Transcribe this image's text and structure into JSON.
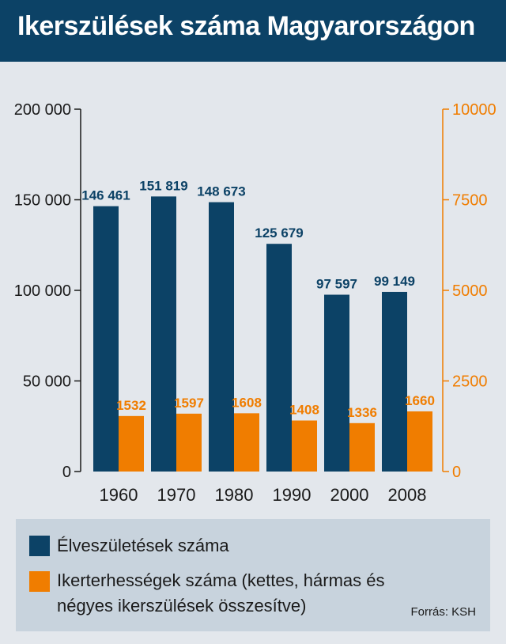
{
  "title": "Ikerszülések száma Magyarországon",
  "chart_data": {
    "type": "bar",
    "categories": [
      "1960",
      "1970",
      "1980",
      "1990",
      "2000",
      "2008"
    ],
    "series": [
      {
        "name": "Élveszületések száma",
        "axis": "left",
        "color": "#0c4266",
        "values": [
          146461,
          151819,
          148673,
          125679,
          97597,
          99149
        ],
        "labels": [
          "146 461",
          "151 819",
          "148 673",
          "125 679",
          "97 597",
          "99 149"
        ]
      },
      {
        "name": "Ikerterhességek száma (kettes, hármas és négyes ikerszülések összesítve)",
        "axis": "right",
        "color": "#f07d00",
        "values": [
          1532,
          1597,
          1608,
          1408,
          1336,
          1660
        ],
        "labels": [
          "1532",
          "1597",
          "1608",
          "1408",
          "1336",
          "1660"
        ]
      }
    ],
    "left_axis": {
      "ylim": [
        0,
        200000
      ],
      "ticks": [
        0,
        50000,
        100000,
        150000,
        200000
      ],
      "tick_labels": [
        "0",
        "50 000",
        "100 000",
        "150 000",
        "200 000"
      ],
      "color": "#1a1a1a"
    },
    "right_axis": {
      "ylim": [
        0,
        10000
      ],
      "ticks": [
        0,
        2500,
        5000,
        7500,
        10000
      ],
      "tick_labels": [
        "0",
        "2500",
        "5000",
        "7500",
        "10000"
      ],
      "color": "#f07d00"
    },
    "grid": false,
    "legend_position": "bottom"
  },
  "legend": {
    "items": [
      {
        "label": "Élveszületések száma",
        "color": "#0c4266"
      },
      {
        "label": "Ikerterhességek száma (kettes, hármas és",
        "label_line2": "négyes ikerszülések összesítve)",
        "color": "#f07d00"
      }
    ]
  },
  "source": "Forrás: KSH"
}
